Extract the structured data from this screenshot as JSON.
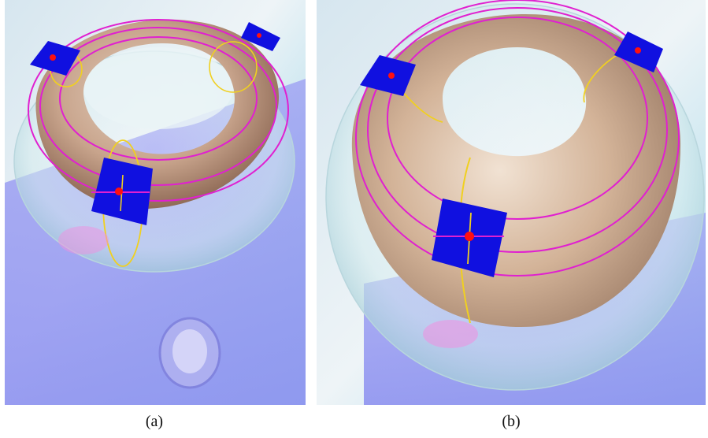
{
  "figure": {
    "panels": [
      {
        "id": "a",
        "caption": "(a)"
      },
      {
        "id": "b",
        "caption": "(b)"
      }
    ]
  },
  "colors": {
    "sky_top": "#cfe4ef",
    "sky_mid": "#e6f1f6",
    "sky_cyan": "#8fd3e6",
    "floor_plane": "#8a8ef2",
    "torus_surface": "#c9ab8e",
    "glass_shell": "#d7ecf0",
    "curve_magenta": "#e020d0",
    "curve_yellow": "#f0d020",
    "tangent_plane": "#1010e0",
    "point_red": "#ff1010"
  },
  "icons": [
    "tangent-plane-icon",
    "contact-point-icon"
  ]
}
